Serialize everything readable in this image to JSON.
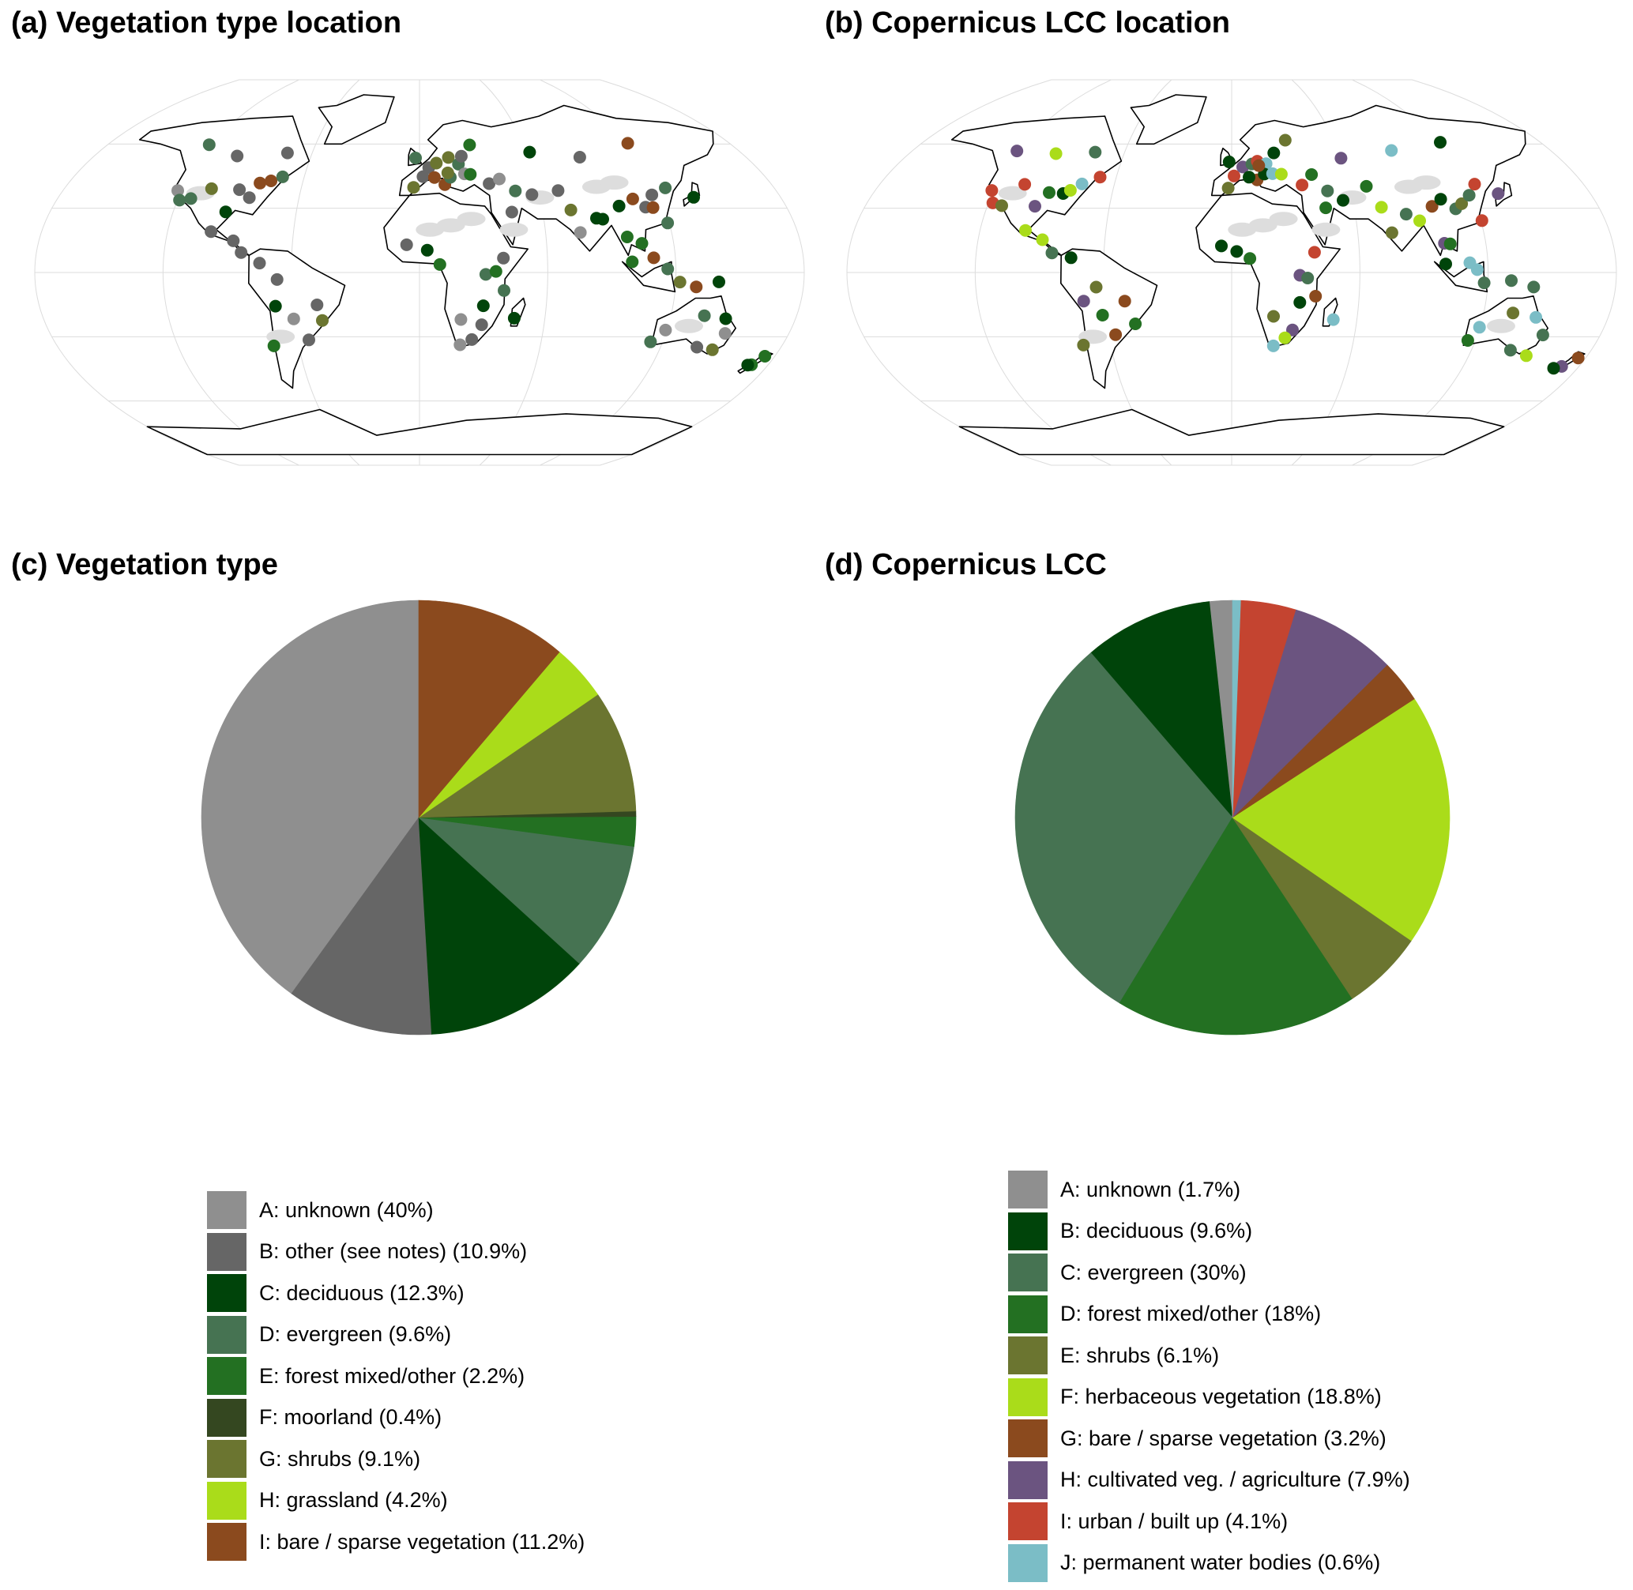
{
  "panels": {
    "a": {
      "title": "(a) Vegetation type location"
    },
    "b": {
      "title": "(b) Copernicus LCC location"
    },
    "c": {
      "title": "(c) Vegetation type"
    },
    "d": {
      "title": "(d) Copernicus LCC"
    }
  },
  "chart_data": [
    {
      "type": "pie",
      "panel": "c",
      "title": "(c) Vegetation type",
      "slices": [
        {
          "label": "A: unknown (40%)",
          "value": 40,
          "color": "#8f8f8f"
        },
        {
          "label": "B: other (see notes) (10.9%)",
          "value": 10.9,
          "color": "#666666"
        },
        {
          "label": "C: deciduous (12.3%)",
          "value": 12.3,
          "color": "#00440a"
        },
        {
          "label": "D: evergreen (9.6%)",
          "value": 9.6,
          "color": "#467352"
        },
        {
          "label": "E: forest mixed/other (2.2%)",
          "value": 2.2,
          "color": "#237022"
        },
        {
          "label": "F: moorland (0.4%)",
          "value": 0.4,
          "color": "#344720"
        },
        {
          "label": "G: shrubs (9.1%)",
          "value": 9.1,
          "color": "#6b7530"
        },
        {
          "label": "H: grassland (4.2%)",
          "value": 4.2,
          "color": "#aadc1a"
        },
        {
          "label": "I: bare / sparse vegetation (11.2%)",
          "value": 11.2,
          "color": "#8b4a1e"
        }
      ],
      "start": "12 o'clock",
      "direction": "counterclockwise",
      "legend_position": "bottom"
    },
    {
      "type": "pie",
      "panel": "d",
      "title": "(d) Copernicus LCC",
      "slices": [
        {
          "label": "A: unknown (1.7%)",
          "value": 1.7,
          "color": "#8f8f8f"
        },
        {
          "label": "B: deciduous (9.6%)",
          "value": 9.6,
          "color": "#00440a"
        },
        {
          "label": "C: evergreen (30%)",
          "value": 30,
          "color": "#467352"
        },
        {
          "label": "D: forest mixed/other (18%)",
          "value": 18,
          "color": "#237022"
        },
        {
          "label": "E: shrubs (6.1%)",
          "value": 6.1,
          "color": "#6b7530"
        },
        {
          "label": "F: herbaceous vegetation (18.8%)",
          "value": 18.8,
          "color": "#aadc1a"
        },
        {
          "label": "G: bare / sparse vegetation (3.2%)",
          "value": 3.2,
          "color": "#8b4a1e"
        },
        {
          "label": "H: cultivated veg. / agriculture (7.9%)",
          "value": 7.9,
          "color": "#6b5480"
        },
        {
          "label": "I: urban / built up (4.1%)",
          "value": 4.1,
          "color": "#c44430"
        },
        {
          "label": "J: permanent water bodies (0.6%)",
          "value": 0.6,
          "color": "#7bbdc6"
        }
      ],
      "start": "12 o'clock",
      "direction": "counterclockwise",
      "legend_position": "bottom"
    }
  ],
  "maps": {
    "projection": "equal-earth world map with graticule",
    "land_color": "#ffffff",
    "coastline_color": "#000000",
    "dryland_color": "#dddddd"
  }
}
